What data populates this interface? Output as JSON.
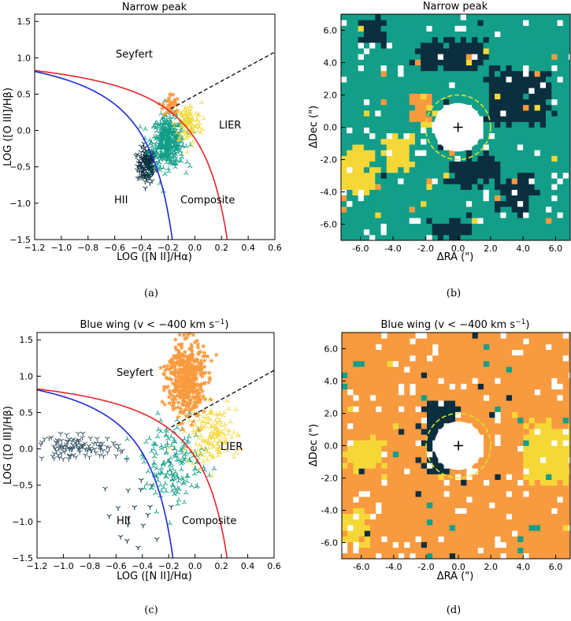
{
  "chart_data": [
    {
      "type": "scatter",
      "panel": "a",
      "title": "Narrow peak",
      "xlabel": "LOG ([N II]/Hα)",
      "ylabel": "LOG ([O III]/Hβ)",
      "xlim": [
        -1.2,
        0.6
      ],
      "ylim": [
        -1.5,
        1.6
      ],
      "xticks": [
        -1.2,
        -1.0,
        -0.8,
        -0.6,
        -0.4,
        -0.2,
        0.0,
        0.2,
        0.4,
        0.6
      ],
      "xtick_labels": [
        "−1.2",
        "−1.0",
        "−0.8",
        "−0.6",
        "−0.4",
        "−0.2",
        "0.0",
        "0.2",
        "0.4",
        "0.6"
      ],
      "yticks": [
        -1.5,
        -1.0,
        -0.5,
        0.0,
        0.5,
        1.0,
        1.5
      ],
      "ytick_labels": [
        "−1.5",
        "−1.0",
        "−0.5",
        "0.0",
        "0.5",
        "1.0",
        "1.5"
      ],
      "region_labels": {
        "seyfert": "Seyfert",
        "lier": "LIER",
        "hii": "HII",
        "composite": "Composite"
      },
      "clusters": [
        {
          "name": "HII",
          "color": "#0b2f3e",
          "center": [
            -0.36,
            -0.48
          ],
          "spread": [
            0.035,
            0.12
          ],
          "count": 140
        },
        {
          "name": "Composite",
          "color": "#129e88",
          "center": [
            -0.2,
            -0.15
          ],
          "spread": [
            0.06,
            0.17
          ],
          "count": 420
        },
        {
          "name": "LIER",
          "color": "#f5d837",
          "center": [
            -0.05,
            0.1
          ],
          "spread": [
            0.05,
            0.14
          ],
          "count": 110
        },
        {
          "name": "Seyfert",
          "color": "#f89a3f",
          "center": [
            -0.18,
            0.35
          ],
          "spread": [
            0.03,
            0.08
          ],
          "count": 35
        }
      ],
      "caption": "(a)"
    },
    {
      "type": "heatmap",
      "panel": "b",
      "title": "Narrow peak",
      "xlabel": "ΔRA (\")",
      "ylabel": "ΔDec (\")",
      "xlim": [
        -7.2,
        6.9
      ],
      "ylim": [
        -7.0,
        7.0
      ],
      "xticks": [
        -6,
        -4,
        -2,
        0,
        2,
        4,
        6
      ],
      "xtick_labels": [
        "-6.0",
        "-4.0",
        "-2.0",
        "0.0",
        "2.0",
        "4.0",
        "6.0"
      ],
      "yticks": [
        -6,
        -4,
        -2,
        0,
        2,
        4,
        6
      ],
      "ytick_labels": [
        "-6.0",
        "-4.0",
        "-2.0",
        "0.0",
        "2.0",
        "4.0",
        "6.0"
      ],
      "background": "#129e88",
      "blobs": [
        {
          "color": "#0b2f3e",
          "x": [
            2.0,
            5.6
          ],
          "y": [
            0.2,
            3.6
          ]
        },
        {
          "color": "#0b2f3e",
          "x": [
            -0.6,
            2.6
          ],
          "y": [
            -3.6,
            -1.8
          ]
        },
        {
          "color": "#0b2f3e",
          "x": [
            -2.6,
            1.8
          ],
          "y": [
            3.6,
            5.4
          ]
        },
        {
          "color": "#0b2f3e",
          "x": [
            2.6,
            4.6
          ],
          "y": [
            -5.2,
            -3.0
          ]
        },
        {
          "color": "#0b2f3e",
          "x": [
            -1.6,
            0.8
          ],
          "y": [
            -7.0,
            -5.6
          ]
        },
        {
          "color": "#0b2f3e",
          "x": [
            -6.0,
            -4.4
          ],
          "y": [
            5.0,
            6.6
          ]
        },
        {
          "color": "#f5d837",
          "x": [
            -7.2,
            -5.0
          ],
          "y": [
            -4.0,
            -1.4
          ]
        },
        {
          "color": "#f5d837",
          "x": [
            -4.6,
            -2.8
          ],
          "y": [
            -2.6,
            -0.6
          ]
        },
        {
          "color": "#f5d837",
          "x": [
            -2.6,
            -1.6
          ],
          "y": [
            0.0,
            1.8
          ]
        },
        {
          "color": "#f89a3f",
          "x": [
            -2.8,
            -1.8
          ],
          "y": [
            0.2,
            1.8
          ]
        },
        {
          "color": "#f89a3f",
          "x": [
            -0.8,
            0.4
          ],
          "y": [
            -1.6,
            -0.8
          ]
        }
      ],
      "aperture_radius": 2.0,
      "core_radius": 1.5,
      "caption": "(b)"
    },
    {
      "type": "scatter",
      "panel": "c",
      "title": "Blue wing (v < −400 km s",
      "title_sup": "−1",
      "title_end": ")",
      "xlabel": "LOG ([N II]/Hα)",
      "ylabel": "LOG ([O III]/Hβ)",
      "xlim": [
        -1.2,
        0.6
      ],
      "ylim": [
        -1.5,
        1.6
      ],
      "xticks": [
        -1.2,
        -1.0,
        -0.8,
        -0.6,
        -0.4,
        -0.2,
        0.0,
        0.2,
        0.4,
        0.6
      ],
      "xtick_labels": [
        "−1.2",
        "−1.0",
        "−0.8",
        "−0.6",
        "−0.4",
        "−0.2",
        "0.0",
        "0.2",
        "0.4",
        "0.6"
      ],
      "yticks": [
        -1.5,
        -1.0,
        -0.5,
        0.0,
        0.5,
        1.0,
        1.5
      ],
      "ytick_labels": [
        "−1.5",
        "−1.0",
        "−0.5",
        "0.0",
        "0.5",
        "1.0",
        "1.5"
      ],
      "region_labels": {
        "seyfert": "Seyfert",
        "lier": "LIER",
        "hii": "HII",
        "composite": "Composite"
      },
      "clusters": [
        {
          "name": "HII",
          "color": "#3b5666",
          "center": [
            -0.9,
            0.02
          ],
          "spread": [
            0.16,
            0.08
          ],
          "count": 110
        },
        {
          "name": "HII outliers",
          "color": "#0b2f3e",
          "center": [
            -0.45,
            -0.7
          ],
          "spread": [
            0.12,
            0.3
          ],
          "count": 18
        },
        {
          "name": "Composite",
          "color": "#129e88",
          "center": [
            -0.15,
            -0.2
          ],
          "spread": [
            0.12,
            0.28
          ],
          "count": 170
        },
        {
          "name": "LIER",
          "color": "#f5d837",
          "center": [
            0.12,
            0.2
          ],
          "spread": [
            0.1,
            0.2
          ],
          "count": 150
        },
        {
          "name": "Seyfert",
          "color": "#f89a3f",
          "center": [
            -0.07,
            0.98
          ],
          "spread": [
            0.07,
            0.26
          ],
          "count": 480
        }
      ],
      "caption": "(c)"
    },
    {
      "type": "heatmap",
      "panel": "d",
      "title": "Blue wing (v < −400 km s",
      "title_sup": "−1",
      "title_end": ")",
      "xlabel": "ΔRA (\")",
      "ylabel": "ΔDec (\")",
      "xlim": [
        -7.2,
        6.9
      ],
      "ylim": [
        -7.0,
        7.0
      ],
      "xticks": [
        -6,
        -4,
        -2,
        0,
        2,
        4,
        6
      ],
      "xtick_labels": [
        "-6.0",
        "-4.0",
        "-2.0",
        "0.0",
        "2.0",
        "4.0",
        "6.0"
      ],
      "yticks": [
        -6,
        -4,
        -2,
        0,
        2,
        4,
        6
      ],
      "ytick_labels": [
        "-6.0",
        "-4.0",
        "-2.0",
        "0.0",
        "2.0",
        "4.0",
        "6.0"
      ],
      "background": "#f89a3f",
      "blobs": [
        {
          "color": "#0b2f3e",
          "x": [
            -2.2,
            -0.4
          ],
          "y": [
            -2.0,
            2.6
          ]
        },
        {
          "color": "#f5d837",
          "x": [
            4.0,
            6.9
          ],
          "y": [
            -2.4,
            1.4
          ]
        },
        {
          "color": "#f5d837",
          "x": [
            -7.2,
            -4.6
          ],
          "y": [
            -1.4,
            0.2
          ]
        },
        {
          "color": "#f5d837",
          "x": [
            -7.2,
            -5.4
          ],
          "y": [
            -6.0,
            -4.2
          ]
        }
      ],
      "aperture_radius": 2.0,
      "core_radius": 1.5,
      "caption": "(d)"
    }
  ]
}
